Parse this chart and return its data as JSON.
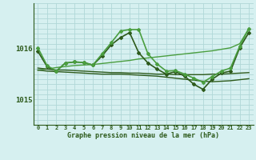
{
  "title": "Graphe pression niveau de la mer (hPa)",
  "bg_color": "#d6f0f0",
  "grid_color": "#b0d8d8",
  "line_color_dark": "#2d5a1b",
  "line_color_light": "#4a9e3f",
  "xlim": [
    -0.5,
    23.5
  ],
  "ylim": [
    1014.5,
    1016.9
  ],
  "yticks": [
    1015.0,
    1016.0
  ],
  "xticks": [
    0,
    1,
    2,
    3,
    4,
    5,
    6,
    7,
    8,
    9,
    10,
    11,
    12,
    13,
    14,
    15,
    16,
    17,
    18,
    19,
    20,
    21,
    22,
    23
  ],
  "series": [
    {
      "x": [
        0,
        1,
        2,
        3,
        4,
        5,
        6,
        7,
        8,
        9,
        10,
        11,
        12,
        13,
        14,
        15,
        16,
        17,
        18,
        19,
        20,
        21,
        22,
        23
      ],
      "y": [
        1015.58,
        1015.6,
        1015.63,
        1015.65,
        1015.67,
        1015.68,
        1015.69,
        1015.71,
        1015.73,
        1015.75,
        1015.77,
        1015.8,
        1015.82,
        1015.84,
        1015.86,
        1015.88,
        1015.9,
        1015.92,
        1015.94,
        1015.96,
        1015.99,
        1016.02,
        1016.1,
        1016.4
      ],
      "style": "light",
      "marker": false,
      "linewidth": 1.0
    },
    {
      "x": [
        0,
        1,
        2,
        3,
        4,
        5,
        6,
        7,
        8,
        9,
        10,
        11,
        12,
        13,
        14,
        15,
        16,
        17,
        18,
        19,
        20,
        21,
        22,
        23
      ],
      "y": [
        1015.62,
        1015.6,
        1015.58,
        1015.58,
        1015.57,
        1015.56,
        1015.55,
        1015.54,
        1015.53,
        1015.53,
        1015.52,
        1015.52,
        1015.51,
        1015.5,
        1015.5,
        1015.49,
        1015.49,
        1015.49,
        1015.49,
        1015.5,
        1015.5,
        1015.51,
        1015.52,
        1015.53
      ],
      "style": "dark",
      "marker": false,
      "linewidth": 1.0
    },
    {
      "x": [
        0,
        1,
        2,
        3,
        4,
        5,
        6,
        7,
        8,
        9,
        10,
        11,
        12,
        13,
        14,
        15,
        16,
        17,
        18,
        19,
        20,
        21,
        22,
        23
      ],
      "y": [
        1015.58,
        1015.56,
        1015.55,
        1015.54,
        1015.53,
        1015.52,
        1015.51,
        1015.5,
        1015.5,
        1015.5,
        1015.49,
        1015.48,
        1015.47,
        1015.46,
        1015.44,
        1015.42,
        1015.4,
        1015.38,
        1015.36,
        1015.35,
        1015.36,
        1015.37,
        1015.39,
        1015.41
      ],
      "style": "dark",
      "marker": false,
      "linewidth": 1.0
    },
    {
      "x": [
        0,
        1,
        2,
        3,
        4,
        5,
        6,
        7,
        8,
        9,
        10,
        11,
        12,
        13,
        14,
        15,
        16,
        17,
        18,
        19,
        20,
        21,
        22,
        23
      ],
      "y": [
        1015.95,
        1015.65,
        1015.56,
        1015.72,
        1015.74,
        1015.73,
        1015.68,
        1015.86,
        1016.08,
        1016.22,
        1016.32,
        1015.92,
        1015.72,
        1015.6,
        1015.5,
        1015.55,
        1015.46,
        1015.3,
        1015.2,
        1015.4,
        1015.52,
        1015.56,
        1016.02,
        1016.32
      ],
      "style": "dark",
      "marker": true,
      "linewidth": 1.2
    },
    {
      "x": [
        0,
        1,
        2,
        3,
        4,
        5,
        6,
        7,
        8,
        9,
        10,
        11,
        12,
        13,
        14,
        15,
        16,
        17,
        18,
        19,
        20,
        21,
        22,
        23
      ],
      "y": [
        1016.02,
        1015.67,
        1015.56,
        1015.72,
        1015.74,
        1015.73,
        1015.68,
        1015.9,
        1016.12,
        1016.35,
        1016.38,
        1016.38,
        1015.9,
        1015.7,
        1015.56,
        1015.57,
        1015.5,
        1015.42,
        1015.34,
        1015.45,
        1015.56,
        1015.62,
        1016.05,
        1016.4
      ],
      "style": "light",
      "marker": true,
      "linewidth": 1.2
    }
  ]
}
